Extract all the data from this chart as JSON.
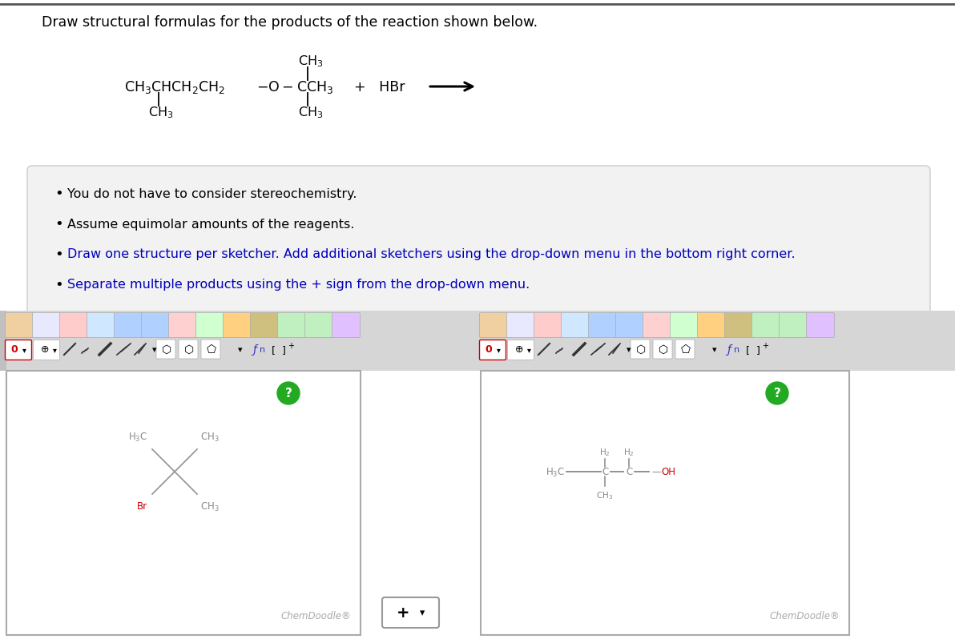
{
  "title": "Draw structural formulas for the products of the reaction shown below.",
  "title_color": "#000000",
  "bg_color": "#ffffff",
  "instructions": [
    "You do not have to consider stereochemistry.",
    "Assume equimolar amounts of the reagents.",
    "Draw one structure per sketcher. Add additional sketchers using the drop-down menu in the bottom right corner.",
    "Separate multiple products using the + sign from the drop-down menu."
  ],
  "instr_colors": [
    "#000000",
    "#000000",
    "#0000cc",
    "#0000cc"
  ],
  "bullet_color": "#000000",
  "text_color": "#000000",
  "gray_color": "#888888",
  "red_color": "#cc0000",
  "chemdoodle_text": "ChemDoodle®",
  "toolbar_bg": "#d8d8d8",
  "panel_border": "#aaaaaa",
  "panel_bg": "#f0f0f0",
  "green_btn": "#22aa22",
  "sketch_bg": "#ffffff",
  "top_border": "#555555"
}
